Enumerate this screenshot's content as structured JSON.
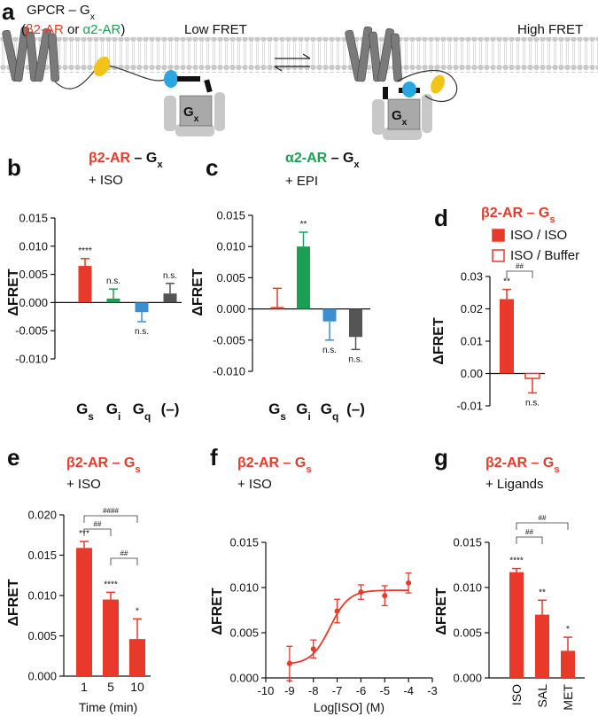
{
  "diagram": {
    "panel": "a",
    "construct": [
      {
        "text": "GPCR – G"
      },
      {
        "text": "x",
        "sub": true
      }
    ],
    "receptors": [
      {
        "text": "("
      },
      {
        "text": "β2-AR",
        "color": "#e8392a"
      },
      {
        "text": " or "
      },
      {
        "text": "α2-AR",
        "color": "#1aa052"
      },
      {
        "text": ")"
      }
    ],
    "state_low": "Low FRET",
    "state_high": "High FRET",
    "g_protein": [
      {
        "text": "G"
      },
      {
        "text": "x",
        "sub": true
      }
    ]
  },
  "chart_data": [
    {
      "type": "bar",
      "panel": "b",
      "title": [
        {
          "text": "β2-AR",
          "color": "#e8392a"
        },
        {
          "text": " – G"
        },
        {
          "text": "x",
          "sub": true
        }
      ],
      "subtitle": "+ ISO",
      "ylabel": "ΔFRET",
      "categories": [
        "Gs",
        "Gi",
        "Gq",
        "(–)"
      ],
      "colors": [
        "#e8392a",
        "#1aa052",
        "#3b8fd0",
        "#555555"
      ],
      "values": [
        0.0065,
        0.0007,
        -0.0017,
        0.0016
      ],
      "errors": [
        0.0013,
        0.0017,
        0.0017,
        0.0018
      ],
      "annotations": [
        "****",
        "n.s.",
        "n.s.",
        "n.s."
      ],
      "ylim": [
        -0.01,
        0.015
      ],
      "yticks": [
        {
          "value": -0.01,
          "label": "-0.010"
        },
        -0.005,
        {
          "value": 0,
          "label": "0.000"
        },
        0.005,
        {
          "value": 0.01,
          "label": "0.010"
        },
        0.015
      ]
    },
    {
      "type": "bar",
      "panel": "c",
      "title": [
        {
          "text": "α2-AR",
          "color": "#1aa052"
        },
        {
          "text": " – G"
        },
        {
          "text": "x",
          "sub": true
        }
      ],
      "subtitle": "+ EPI",
      "ylabel": "ΔFRET",
      "categories": [
        "Gs",
        "Gi",
        "Gq",
        "(–)"
      ],
      "colors": [
        "#e8392a",
        "#1aa052",
        "#3b8fd0",
        "#555555"
      ],
      "values": [
        0.0003,
        0.01,
        -0.002,
        -0.0045
      ],
      "errors": [
        0.003,
        0.0023,
        0.003,
        0.002
      ],
      "annotations": [
        null,
        "**",
        "n.s.",
        "n.s."
      ],
      "ylim": [
        -0.01,
        0.015
      ],
      "yticks": [
        {
          "value": -0.01,
          "label": "-0.010"
        },
        -0.005,
        {
          "value": 0,
          "label": "0.000"
        },
        0.005,
        {
          "value": 0.01,
          "label": "0.010"
        },
        0.015
      ]
    },
    {
      "type": "bar",
      "panel": "d",
      "title": [
        {
          "text": "β2-AR – G",
          "color": "#e8392a"
        },
        {
          "text": "s",
          "sub": true,
          "color": "#e8392a"
        }
      ],
      "ylabel": "ΔFRET",
      "series": [
        {
          "name": "ISO / ISO",
          "color": "#e8392a",
          "filled": true,
          "values": [
            0.023,
            null
          ],
          "errors": [
            0.003,
            null
          ],
          "annotations": [
            "**",
            null
          ]
        },
        {
          "name": "ISO / Buffer",
          "color": "#e8392a",
          "filled": false,
          "values": [
            null,
            -0.0015
          ],
          "errors": [
            null,
            0.0045
          ],
          "annotations": [
            null,
            "n.s."
          ]
        }
      ],
      "brackets": [
        {
          "from": 0,
          "to": 1,
          "label": "##"
        }
      ],
      "ylim": [
        -0.01,
        0.03
      ],
      "yticks": [
        -0.01,
        {
          "value": 0,
          "label": "0.00"
        },
        0.01,
        0.02,
        0.03
      ]
    },
    {
      "type": "bar",
      "panel": "e",
      "title": [
        {
          "text": "β2-AR – G",
          "color": "#e8392a"
        },
        {
          "text": "s",
          "sub": true,
          "color": "#e8392a"
        }
      ],
      "subtitle": "+ ISO",
      "ylabel": "ΔFRET",
      "xlabel": "Time (min)",
      "categories": [
        "1",
        "5",
        "10"
      ],
      "color": "#e8392a",
      "values": [
        0.0159,
        0.0095,
        0.0046
      ],
      "errors": [
        0.0008,
        0.0009,
        0.0025
      ],
      "annotations": [
        "***",
        "****",
        "*"
      ],
      "brackets": [
        {
          "from": 0,
          "to": 1,
          "label": "##"
        },
        {
          "from": 0,
          "to": 2,
          "label": "####"
        },
        {
          "from": 1,
          "to": 2,
          "label": "##"
        }
      ],
      "ylim": [
        0,
        0.02
      ],
      "yticks": [
        {
          "value": 0,
          "label": "0.000"
        },
        0.005,
        {
          "value": 0.01,
          "label": "0.010"
        },
        0.015,
        {
          "value": 0.02,
          "label": "0.020"
        }
      ]
    },
    {
      "type": "scatter",
      "panel": "f",
      "title": [
        {
          "text": "β2-AR – G",
          "color": "#e8392a"
        },
        {
          "text": "s",
          "sub": true,
          "color": "#e8392a"
        }
      ],
      "subtitle": "+ ISO",
      "ylabel": "ΔFRET",
      "xlabel": "Log[ISO] (M)",
      "color": "#e8392a",
      "x": [
        -9,
        -8,
        -7,
        -6,
        -5,
        -4
      ],
      "values": [
        0.0016,
        0.0032,
        0.0074,
        0.0095,
        0.0091,
        0.0105
      ],
      "errors": [
        0.0019,
        0.001,
        0.0013,
        0.0008,
        0.0011,
        0.0011
      ],
      "fit": {
        "bottom": 0.0015,
        "top": 0.0097,
        "log_ec50": -7.3,
        "hill": 1.1
      },
      "xlim": [
        -10,
        -3
      ],
      "xticks": [
        -10,
        -9,
        -8,
        -7,
        -6,
        -5,
        -4,
        -3
      ],
      "ylim": [
        0,
        0.015
      ],
      "yticks": [
        {
          "value": 0,
          "label": "0.000"
        },
        0.005,
        {
          "value": 0.01,
          "label": "0.010"
        },
        0.015
      ]
    },
    {
      "type": "bar",
      "panel": "g",
      "title": [
        {
          "text": "β2-AR – G",
          "color": "#e8392a"
        },
        {
          "text": "s",
          "sub": true,
          "color": "#e8392a"
        }
      ],
      "subtitle": "+ Ligands",
      "ylabel": "ΔFRET",
      "categories": [
        "ISO",
        "SAL",
        "MET"
      ],
      "rotate_labels": true,
      "color": "#e8392a",
      "values": [
        0.0117,
        0.007,
        0.003
      ],
      "errors": [
        0.0004,
        0.0016,
        0.0015
      ],
      "annotations": [
        "****",
        "**",
        "*"
      ],
      "brackets": [
        {
          "from": 0,
          "to": 1,
          "label": "##"
        },
        {
          "from": 0,
          "to": 2,
          "label": "##"
        }
      ],
      "ylim": [
        0,
        0.015
      ],
      "yticks": [
        {
          "value": 0,
          "label": "0.000"
        },
        0.005,
        {
          "value": 0.01,
          "label": "0.010"
        },
        0.015
      ]
    }
  ]
}
